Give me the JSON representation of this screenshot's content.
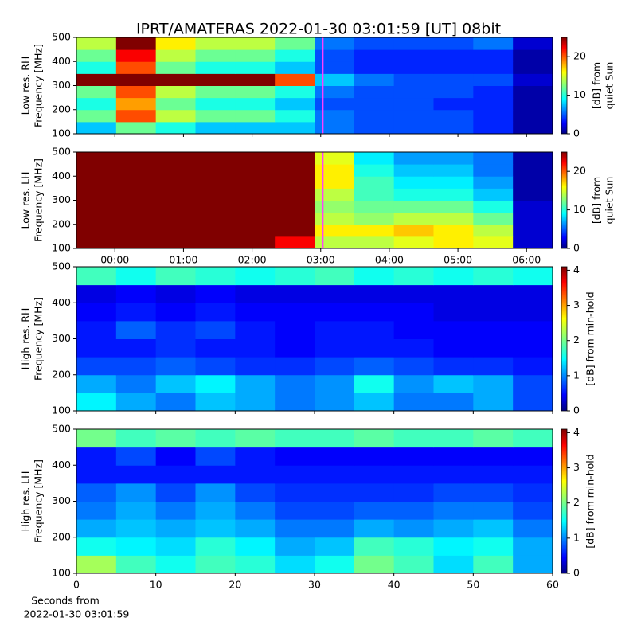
{
  "title": "IPRT/AMATERAS 2022-01-30 03:01:59 [UT]   08bit",
  "footer": [
    "Seconds from",
    "2022-01-30 03:01:59"
  ],
  "chart_data": [
    {
      "type": "heatmap",
      "colormap": "jet",
      "ylabel": [
        "Low res. RH",
        "Frequency [MHz]"
      ],
      "xlim": [
        -0.56,
        6.38
      ],
      "xticks": [
        0,
        1,
        2,
        3,
        4,
        5,
        6
      ],
      "show_xticklabels": false,
      "ylim": [
        100,
        500
      ],
      "yticks": [
        100,
        200,
        300,
        400,
        500
      ],
      "marker_x": 3.03,
      "marker_color": "#ff40ff",
      "colorbar": {
        "label": [
          "[dB] from",
          "quiet Sun"
        ],
        "lim": [
          0,
          25
        ],
        "ticks": [
          0,
          10,
          20
        ]
      },
      "z": [
        [
          8,
          12,
          10,
          8,
          8,
          8,
          6,
          5,
          5,
          5,
          4,
          1
        ],
        [
          12,
          20,
          14,
          12,
          12,
          10,
          6,
          5,
          5,
          5,
          4,
          1
        ],
        [
          10,
          18,
          12,
          10,
          10,
          8,
          5,
          5,
          5,
          4,
          4,
          1
        ],
        [
          12,
          20,
          14,
          12,
          12,
          10,
          6,
          5,
          5,
          5,
          4,
          1
        ],
        [
          25,
          25,
          25,
          25,
          25,
          20,
          8,
          6,
          5,
          5,
          5,
          2
        ],
        [
          10,
          20,
          12,
          10,
          10,
          8,
          5,
          4,
          4,
          4,
          4,
          1
        ],
        [
          12,
          22,
          14,
          12,
          12,
          10,
          5,
          4,
          4,
          4,
          4,
          1
        ],
        [
          14,
          25,
          16,
          14,
          14,
          12,
          6,
          5,
          5,
          5,
          6,
          2
        ]
      ]
    },
    {
      "type": "heatmap",
      "colormap": "jet",
      "ylabel": [
        "Low res. LH",
        "Frequency [MHz]"
      ],
      "xlim": [
        -0.56,
        6.38
      ],
      "xticks": [
        {
          "value": 0,
          "label": "00:00"
        },
        {
          "value": 1,
          "label": "01:00"
        },
        {
          "value": 2,
          "label": "02:00"
        },
        {
          "value": 3,
          "label": "03:00"
        },
        {
          "value": 4,
          "label": "04:00"
        },
        {
          "value": 5,
          "label": "05:00"
        },
        {
          "value": 6,
          "label": "06:00"
        }
      ],
      "show_xticklabels": true,
      "ylim": [
        100,
        500
      ],
      "yticks": [
        100,
        200,
        300,
        400,
        500
      ],
      "marker_x": 3.03,
      "marker_color": "#ff40ff",
      "colorbar": {
        "label": [
          "[dB] from",
          "quiet Sun"
        ],
        "lim": [
          0,
          25
        ],
        "ticks": [
          0,
          10,
          20
        ]
      },
      "z": [
        [
          25,
          25,
          25,
          25,
          25,
          22,
          14,
          14,
          15,
          16,
          15,
          2
        ],
        [
          25,
          25,
          25,
          25,
          25,
          25,
          16,
          16,
          17,
          16,
          14,
          2
        ],
        [
          25,
          25,
          25,
          25,
          25,
          25,
          14,
          13,
          14,
          14,
          12,
          2
        ],
        [
          25,
          25,
          25,
          25,
          25,
          25,
          13,
          12,
          12,
          12,
          10,
          2
        ],
        [
          25,
          25,
          25,
          25,
          25,
          25,
          14,
          11,
          10,
          10,
          8,
          1
        ],
        [
          25,
          25,
          25,
          25,
          25,
          25,
          16,
          11,
          9,
          9,
          7,
          1
        ],
        [
          25,
          25,
          25,
          25,
          25,
          25,
          16,
          10,
          8,
          8,
          6,
          1
        ],
        [
          25,
          25,
          25,
          25,
          25,
          25,
          15,
          9,
          7,
          7,
          6,
          1
        ]
      ]
    },
    {
      "type": "heatmap",
      "colormap": "jet",
      "ylabel": [
        "High res. RH",
        "Frequency [MHz]"
      ],
      "xlim": [
        0,
        60
      ],
      "xticks": [
        0,
        10,
        20,
        30,
        40,
        50,
        60
      ],
      "show_xticklabels": false,
      "ylim": [
        100,
        500
      ],
      "yticks": [
        100,
        200,
        300,
        400,
        500
      ],
      "colorbar": {
        "label": [
          "[dB] from min-hold"
        ],
        "lim": [
          0,
          4.1
        ],
        "ticks": [
          0,
          1,
          2,
          3,
          4
        ]
      },
      "z": [
        [
          1.5,
          1.2,
          1,
          1.3,
          1.2,
          1,
          1.1,
          1.3,
          1,
          1,
          1.2,
          0.8
        ],
        [
          1.2,
          1,
          1.3,
          1.5,
          1.2,
          1,
          1.1,
          1.6,
          1.1,
          1.3,
          1.2,
          0.8
        ],
        [
          0.8,
          0.8,
          0.9,
          0.8,
          0.7,
          0.7,
          0.8,
          0.9,
          0.8,
          0.7,
          0.7,
          0.6
        ],
        [
          0.6,
          0.6,
          0.7,
          0.6,
          0.6,
          0.5,
          0.6,
          0.6,
          0.6,
          0.5,
          0.5,
          0.5
        ],
        [
          0.6,
          0.9,
          0.7,
          0.8,
          0.6,
          0.5,
          0.6,
          0.6,
          0.5,
          0.5,
          0.5,
          0.5
        ],
        [
          0.5,
          0.6,
          0.5,
          0.6,
          0.5,
          0.5,
          0.5,
          0.5,
          0.5,
          0.4,
          0.4,
          0.4
        ],
        [
          0.4,
          0.5,
          0.4,
          0.5,
          0.4,
          0.4,
          0.4,
          0.4,
          0.4,
          0.4,
          0.4,
          0.4
        ],
        [
          1.8,
          1.6,
          1.8,
          1.7,
          1.6,
          1.7,
          1.8,
          1.6,
          1.7,
          1.6,
          1.7,
          1.6
        ]
      ]
    },
    {
      "type": "heatmap",
      "colormap": "jet",
      "ylabel": [
        "High res. LH",
        "Frequency [MHz]"
      ],
      "xlim": [
        0,
        60
      ],
      "xticks": [
        0,
        10,
        20,
        30,
        40,
        50,
        60
      ],
      "show_xticklabels": true,
      "ylim": [
        100,
        500
      ],
      "yticks": [
        100,
        200,
        300,
        400,
        500
      ],
      "colorbar": {
        "label": [
          "[dB] from min-hold"
        ],
        "lim": [
          0,
          4.1
        ],
        "ticks": [
          0,
          1,
          2,
          3,
          4
        ]
      },
      "z": [
        [
          2.2,
          1.8,
          1.6,
          1.8,
          1.7,
          1.4,
          1.6,
          2,
          1.8,
          1.4,
          1.8,
          1.2
        ],
        [
          1.6,
          1.5,
          1.4,
          1.7,
          1.5,
          1.2,
          1.3,
          1.8,
          1.7,
          1.5,
          1.6,
          1.2
        ],
        [
          1.2,
          1.3,
          1.2,
          1.3,
          1.2,
          1,
          1,
          1.2,
          1.1,
          1.2,
          1.3,
          1
        ],
        [
          1,
          1.2,
          1,
          1.2,
          1,
          0.8,
          0.8,
          0.9,
          0.9,
          1,
          1,
          0.8
        ],
        [
          0.9,
          1.1,
          0.8,
          1.1,
          0.8,
          0.7,
          0.7,
          0.7,
          0.7,
          0.8,
          0.8,
          0.7
        ],
        [
          0.6,
          0.6,
          0.6,
          0.6,
          0.6,
          0.6,
          0.6,
          0.6,
          0.6,
          0.6,
          0.6,
          0.6
        ],
        [
          0.6,
          0.8,
          0.5,
          0.8,
          0.6,
          0.5,
          0.5,
          0.5,
          0.5,
          0.5,
          0.5,
          0.5
        ],
        [
          2,
          1.8,
          1.9,
          1.8,
          1.9,
          1.8,
          1.8,
          1.9,
          1.8,
          1.8,
          1.9,
          1.8
        ]
      ]
    }
  ]
}
